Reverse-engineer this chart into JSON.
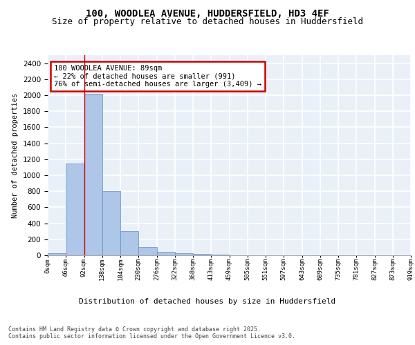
{
  "title_line1": "100, WOODLEA AVENUE, HUDDERSFIELD, HD3 4EF",
  "title_line2": "Size of property relative to detached houses in Huddersfield",
  "xlabel": "Distribution of detached houses by size in Huddersfield",
  "ylabel": "Number of detached properties",
  "bar_values": [
    30,
    1150,
    2020,
    800,
    300,
    105,
    40,
    30,
    15,
    5,
    2,
    1,
    0,
    0,
    0,
    0,
    0,
    0,
    0,
    0
  ],
  "bin_labels": [
    "0sqm",
    "46sqm",
    "92sqm",
    "138sqm",
    "184sqm",
    "230sqm",
    "276sqm",
    "322sqm",
    "368sqm",
    "413sqm",
    "459sqm",
    "505sqm",
    "551sqm",
    "597sqm",
    "643sqm",
    "689sqm",
    "735sqm",
    "781sqm",
    "827sqm",
    "873sqm",
    "919sqm"
  ],
  "bar_color": "#aec6e8",
  "bar_edge_color": "#5a8fc2",
  "vline_color": "#cc0000",
  "annotation_text": "100 WOODLEA AVENUE: 89sqm\n← 22% of detached houses are smaller (991)\n76% of semi-detached houses are larger (3,409) →",
  "annotation_box_color": "#ffffff",
  "annotation_box_edge_color": "#cc0000",
  "ylim": [
    0,
    2500
  ],
  "yticks": [
    0,
    200,
    400,
    600,
    800,
    1000,
    1200,
    1400,
    1600,
    1800,
    2000,
    2200,
    2400
  ],
  "bg_color": "#eaf0f8",
  "grid_color": "#ffffff",
  "footnote": "Contains HM Land Registry data © Crown copyright and database right 2025.\nContains public sector information licensed under the Open Government Licence v3.0.",
  "title_fontsize": 10,
  "subtitle_fontsize": 9,
  "annotation_fontsize": 7.5,
  "footnote_fontsize": 6.0
}
